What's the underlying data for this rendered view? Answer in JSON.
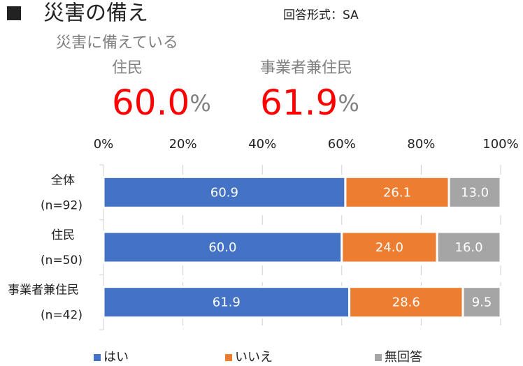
{
  "chart_data": {
    "type": "stacked_bar_horizontal",
    "title": "災害の備え",
    "subtitle": "回答形式：SA",
    "annotation": "災害に備えている",
    "highlights": [
      {
        "name": "住民",
        "value": 60.0,
        "label": "60.0",
        "unit": "%"
      },
      {
        "name": "事業者兼住民",
        "value": 61.9,
        "label": "61.9",
        "unit": "%"
      }
    ],
    "categories": [
      "全体",
      "住民",
      "事業者兼住民"
    ],
    "sample_sizes": [
      "(n=92)",
      "(n=50)",
      "(n=42)"
    ],
    "series": [
      {
        "name": "はい",
        "color": "#4472c4",
        "values": [
          60.9,
          60.0,
          61.9
        ],
        "value_labels": [
          "60.9",
          "60.0",
          "61.9"
        ]
      },
      {
        "name": "いいえ",
        "color": "#ed7d31",
        "values": [
          26.1,
          24.0,
          28.6
        ],
        "value_labels": [
          "26.1",
          "24.0",
          "28.6"
        ]
      },
      {
        "name": "無回答",
        "color": "#a5a5a5",
        "values": [
          13.0,
          16.0,
          9.5
        ],
        "value_labels": [
          "13.0",
          "16.0",
          "9.5"
        ]
      }
    ],
    "xlim": [
      0,
      100
    ],
    "xticks": [
      {
        "value": 0,
        "label": "0%"
      },
      {
        "value": 20,
        "label": "20%"
      },
      {
        "value": 40,
        "label": "40%"
      },
      {
        "value": 60,
        "label": "60%"
      },
      {
        "value": 80,
        "label": "80%"
      },
      {
        "value": 100,
        "label": "100%"
      }
    ],
    "grid": true,
    "legend": "bottom"
  }
}
